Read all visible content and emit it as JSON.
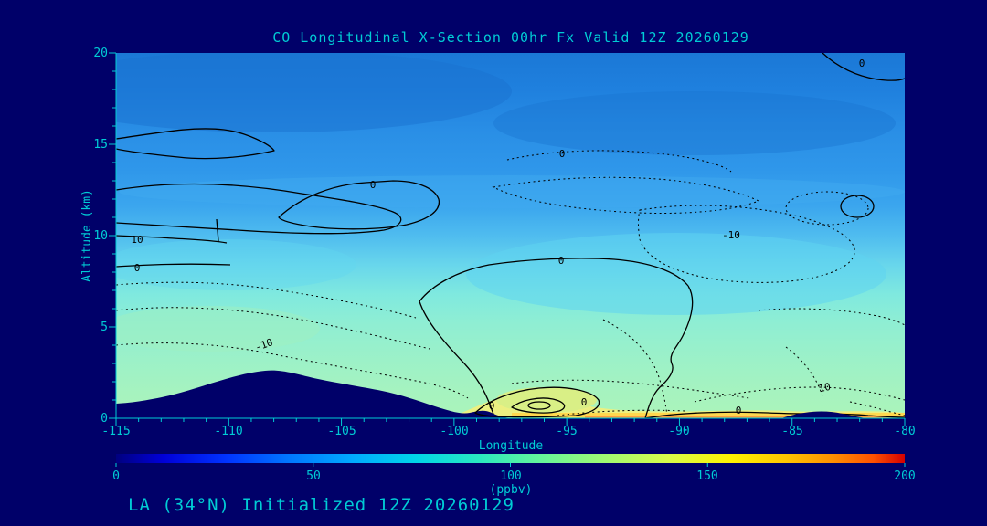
{
  "colors": {
    "background": "#000069",
    "text": "#00ccd5",
    "contour": "#000000"
  },
  "chart_data": {
    "type": "heatmap",
    "title": "CO Longitudinal X-Section 00hr  Fx Valid 12Z 20260129",
    "caption": "LA (34°N) Initialized 12Z 20260129",
    "xlabel": "Longitude",
    "ylabel": "Altitude (km)",
    "xlim": [
      -115,
      -80
    ],
    "ylim": [
      0,
      20
    ],
    "x_ticks": [
      "-115",
      "-110",
      "-105",
      "-100",
      "-95",
      "-90",
      "-85",
      "-80"
    ],
    "y_ticks": [
      "20",
      "15",
      "10",
      "5",
      "0"
    ],
    "colorbar": {
      "label": "(ppbv)",
      "min": 0,
      "max": 200,
      "ticks": [
        "0",
        "50",
        "100",
        "150",
        "200"
      ],
      "palette": [
        "#00007f",
        "#0000d8",
        "#0033ff",
        "#0077ff",
        "#00aaff",
        "#00d5e8",
        "#2ae8c0",
        "#66f59a",
        "#a0fa72",
        "#d8fb4a",
        "#fff200",
        "#ffc400",
        "#ff8e00",
        "#ff5000",
        "#d40000"
      ]
    },
    "contours": {
      "solid_labeled_levels": [
        0,
        10
      ],
      "dotted_labeled_levels": [
        -10,
        0,
        10
      ]
    },
    "contour_labels": [
      {
        "text": "10",
        "lon": -114.1,
        "alt": 9.6
      },
      {
        "text": "0",
        "lon": -114.1,
        "alt": 8.1
      },
      {
        "text": "0",
        "lon": -103.6,
        "alt": 12.6
      },
      {
        "text": "0",
        "lon": -95.2,
        "alt": 8.5
      },
      {
        "text": "-10",
        "lon": -108.4,
        "alt": 3.9
      },
      {
        "text": "0",
        "lon": -95.2,
        "alt": 14.3
      },
      {
        "text": "-10",
        "lon": -87.7,
        "alt": 9.9
      },
      {
        "text": "10",
        "lon": -83.5,
        "alt": 1.5
      },
      {
        "text": "0",
        "lon": -81.9,
        "alt": 19.3
      },
      {
        "text": "0",
        "lon": -87.4,
        "alt": 0.3
      },
      {
        "text": "0",
        "lon": -98.3,
        "alt": 0.5
      },
      {
        "text": "0",
        "lon": -94.2,
        "alt": 0.7
      }
    ],
    "terrain_profile": [
      {
        "lon": -115,
        "alt": 0.8
      },
      {
        "lon": -111.5,
        "alt": 1.2
      },
      {
        "lon": -108.3,
        "alt": 2.6
      },
      {
        "lon": -106,
        "alt": 2.0
      },
      {
        "lon": -103,
        "alt": 1.4
      },
      {
        "lon": -100.5,
        "alt": 0.6
      },
      {
        "lon": -98.5,
        "alt": 0.2
      },
      {
        "lon": -97.5,
        "alt": 0.0
      },
      {
        "lon": -84.5,
        "alt": 0.4
      },
      {
        "lon": -80,
        "alt": 0.0
      }
    ],
    "fill_description": "Filled CO contours: blue (~60 ppbv) aloft grading through cyan and pale green to yellow/orange (~120-150 ppbv) near the surface; dark navy terrain silhouette masks the lowest levels between -115 and -98 longitude."
  }
}
